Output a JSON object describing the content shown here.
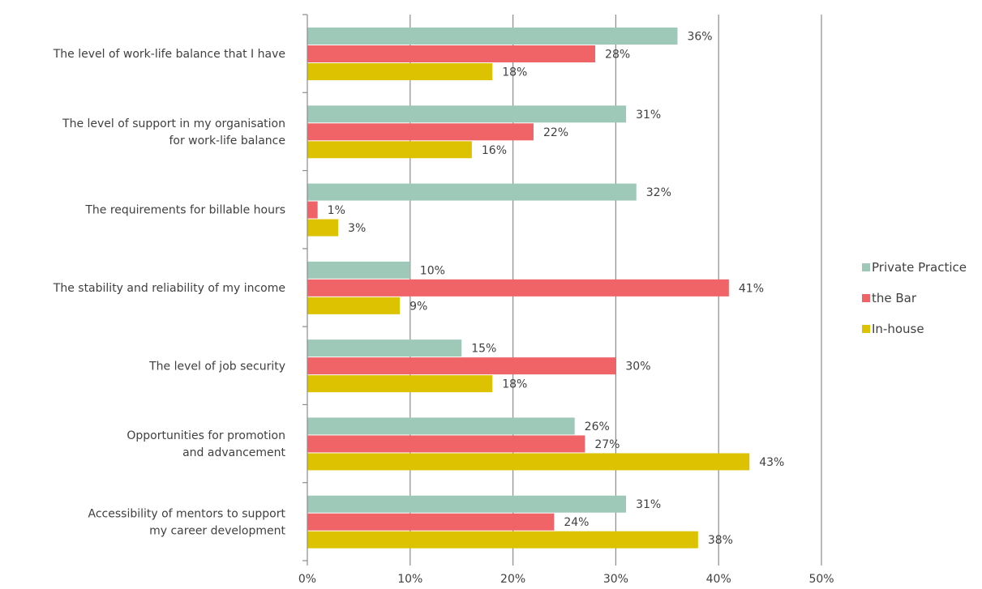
{
  "chart_data": {
    "type": "bar",
    "orientation": "horizontal",
    "categories": [
      [
        "The level of work-life balance that I have"
      ],
      [
        "The level of support in my organisation",
        "for work-life balance"
      ],
      [
        "The requirements for billable hours"
      ],
      [
        "The stability and reliability of my income"
      ],
      [
        "The level of job security"
      ],
      [
        "Opportunities for promotion",
        "and advancement"
      ],
      [
        "Accessibility of mentors to support",
        "my career development"
      ]
    ],
    "series": [
      {
        "name": "Private Practice",
        "color": "#9ec9b8",
        "values": [
          36,
          31,
          32,
          10,
          15,
          26,
          31
        ],
        "labels": [
          "36%",
          "31%",
          "32%",
          "10%",
          "15%",
          "26%",
          "31%"
        ]
      },
      {
        "name": "the Bar",
        "color": "#f06468",
        "values": [
          28,
          22,
          1,
          41,
          30,
          27,
          24
        ],
        "labels": [
          "28%",
          "22%",
          "1%",
          "41%",
          "30%",
          "27%",
          "24%"
        ]
      },
      {
        "name": "In-house",
        "color": "#dcc200",
        "values": [
          18,
          16,
          3,
          9,
          18,
          43,
          38
        ],
        "labels": [
          "18%",
          "16%",
          "3%",
          "9%",
          "18%",
          "43%",
          "38%"
        ]
      }
    ],
    "xlim": [
      0,
      50
    ],
    "xticks": [
      0,
      10,
      20,
      30,
      40,
      50
    ],
    "xtick_labels": [
      "0%",
      "10%",
      "20%",
      "30%",
      "40%",
      "50%"
    ],
    "grid": "vertical",
    "legend": "right",
    "title": "",
    "xlabel": "",
    "ylabel": ""
  }
}
